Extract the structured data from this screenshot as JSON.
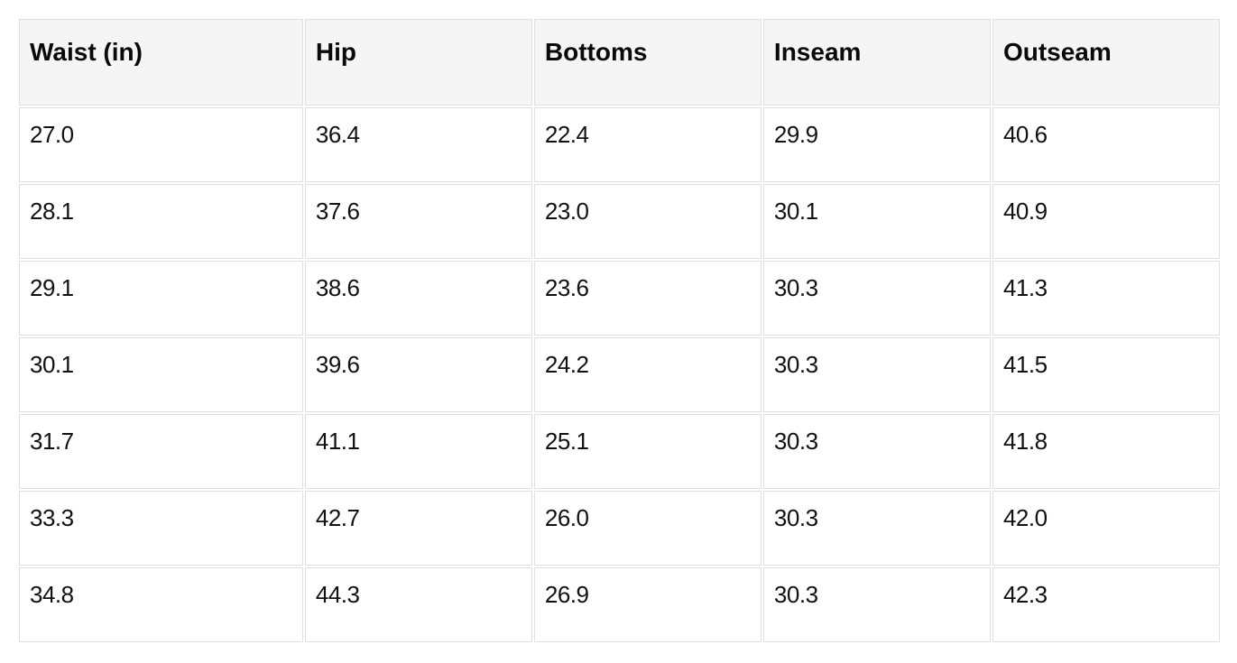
{
  "colors": {
    "page_background": "#ffffff",
    "header_background": "#f5f5f5",
    "cell_background": "#ffffff",
    "border": "#e0e0e0",
    "text": "#111111"
  },
  "chart_data": {
    "type": "table",
    "title": "",
    "columns": [
      "Waist (in)",
      "Hip",
      "Bottoms",
      "Inseam",
      "Outseam"
    ],
    "rows": [
      [
        "27.0",
        "36.4",
        "22.4",
        "29.9",
        "40.6"
      ],
      [
        "28.1",
        "37.6",
        "23.0",
        "30.1",
        "40.9"
      ],
      [
        "29.1",
        "38.6",
        "23.6",
        "30.3",
        "41.3"
      ],
      [
        "30.1",
        "39.6",
        "24.2",
        "30.3",
        "41.5"
      ],
      [
        "31.7",
        "41.1",
        "25.1",
        "30.3",
        "41.8"
      ],
      [
        "33.3",
        "42.7",
        "26.0",
        "30.3",
        "42.0"
      ],
      [
        "34.8",
        "44.3",
        "26.9",
        "30.3",
        "42.3"
      ]
    ]
  }
}
